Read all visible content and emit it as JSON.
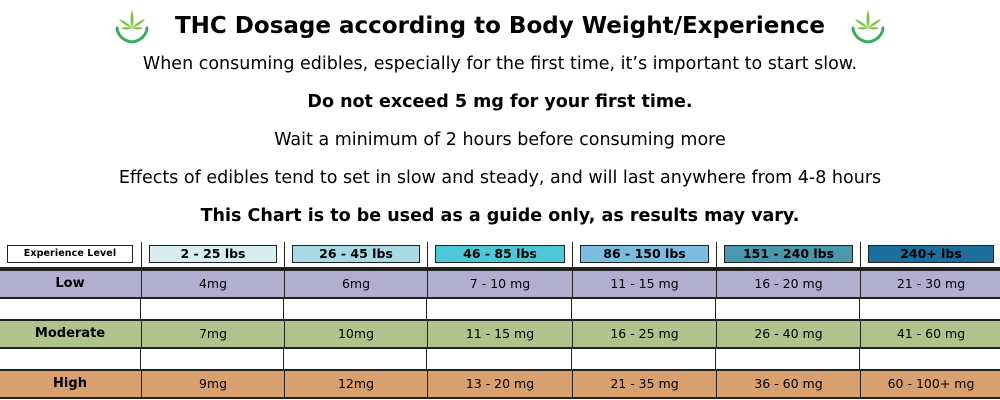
{
  "title": "THC Dosage according to Body Weight/Experience",
  "lines": [
    "When consuming edibles, especially for the first time, it’s important to start slow.",
    "Do not exceed 5 mg for your first time.",
    "Wait a minimum of 2 hours before consuming more",
    "Effects of edibles tend to set in slow and steady, and will last anywhere from 4-8 hours",
    "This Chart is to be used as a guide only, as results may vary."
  ],
  "icons": [
    "cannabis-leaf-hands-icon",
    "cannabis-leaf-hands-icon"
  ],
  "colors": {
    "leaf": "#7dc242",
    "hands": "#3aaa5c",
    "low": "#b1aed0",
    "moderate": "#b0c38d",
    "high": "#d8a06e",
    "header_bg": [
      "#ffffff",
      "#d6eef2",
      "#a7dbe3",
      "#4ec8d6",
      "#7bbde0",
      "#4a98b0",
      "#1c6e9c"
    ]
  },
  "table": {
    "headers": [
      "Experience Level",
      "2 - 25 lbs",
      "26 - 45 lbs",
      "46 - 85 lbs",
      "86 - 150 lbs",
      "151 - 240 lbs",
      "240+ lbs"
    ],
    "rows": [
      {
        "level": "Low",
        "values": [
          "4mg",
          "6mg",
          "7 - 10 mg",
          "11 - 15 mg",
          "16 - 20 mg",
          "21 - 30 mg"
        ]
      },
      {
        "level": "Moderate",
        "values": [
          "7mg",
          "10mg",
          "11 - 15 mg",
          "16 - 25 mg",
          "26 - 40 mg",
          "41 - 60 mg"
        ]
      },
      {
        "level": "High",
        "values": [
          "9mg",
          "12mg",
          "13 - 20 mg",
          "21 - 35 mg",
          "36 - 60 mg",
          "60 - 100+ mg"
        ]
      }
    ]
  }
}
